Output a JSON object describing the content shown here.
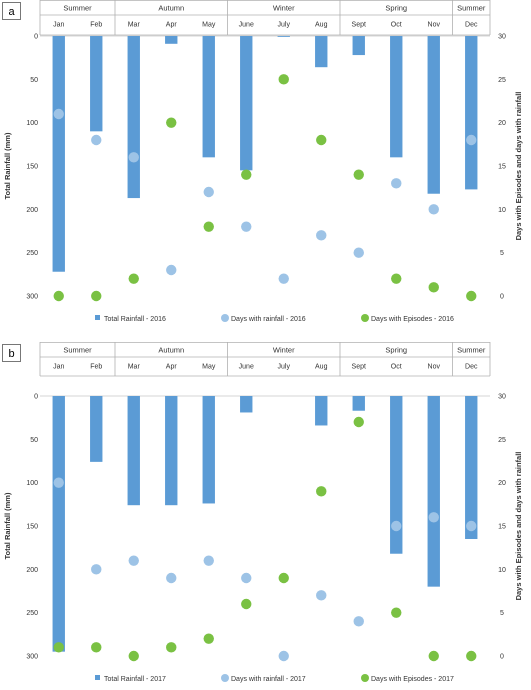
{
  "chart_data": [
    {
      "panel_label": "a",
      "type": "bar+scatter",
      "seasons": [
        {
          "name": "Summer",
          "span": [
            0,
            1
          ]
        },
        {
          "name": "Autumn",
          "span": [
            2,
            4
          ]
        },
        {
          "name": "Winter",
          "span": [
            5,
            7
          ]
        },
        {
          "name": "Spring",
          "span": [
            8,
            10
          ]
        },
        {
          "name": "Summer",
          "span": [
            11,
            11
          ]
        }
      ],
      "categories": [
        "Jan",
        "Feb",
        "Mar",
        "Apr",
        "May",
        "June",
        "July",
        "Aug",
        "Sept",
        "Oct",
        "Nov",
        "Dec"
      ],
      "ylabel_left": "Total Rainfall (mm)",
      "ylabel_right": "Days with Episodes and days with rainfall",
      "ylim_left": [
        0,
        300
      ],
      "ylim_right": [
        0,
        30
      ],
      "left_axis_inverted": true,
      "yticks_left": [
        0,
        50,
        100,
        150,
        200,
        250,
        300
      ],
      "yticks_right": [
        0,
        5,
        10,
        15,
        20,
        25,
        30
      ],
      "legend_position": "bottom",
      "series": [
        {
          "name": "Total Rainfall - 2016",
          "kind": "bar",
          "axis": "left",
          "color": "#5b9bd5",
          "values": [
            272,
            110,
            187,
            9,
            140,
            155,
            1,
            36,
            22,
            140,
            182,
            177
          ]
        },
        {
          "name": "Days with rainfall - 2016",
          "kind": "scatter",
          "axis": "right",
          "color": "#9dc3e6",
          "values": [
            21,
            18,
            16,
            3,
            12,
            8,
            2,
            7,
            5,
            13,
            10,
            18
          ]
        },
        {
          "name": "Days with Episodes - 2016",
          "kind": "scatter",
          "axis": "right",
          "color": "#7ac143",
          "values": [
            0,
            0,
            2,
            20,
            8,
            14,
            25,
            18,
            14,
            2,
            1,
            0
          ]
        }
      ]
    },
    {
      "panel_label": "b",
      "type": "bar+scatter",
      "seasons": [
        {
          "name": "Summer",
          "span": [
            0,
            1
          ]
        },
        {
          "name": "Autumn",
          "span": [
            2,
            4
          ]
        },
        {
          "name": "Winter",
          "span": [
            5,
            7
          ]
        },
        {
          "name": "Spring",
          "span": [
            8,
            10
          ]
        },
        {
          "name": "Summer",
          "span": [
            11,
            11
          ]
        }
      ],
      "categories": [
        "Jan",
        "Feb",
        "Mar",
        "Apr",
        "May",
        "June",
        "July",
        "Aug",
        "Sept",
        "Oct",
        "Nov",
        "Dec"
      ],
      "ylabel_left": "Total Rainfall (mm)",
      "ylabel_right": "Days with Episodes and days with rainfall",
      "ylim_left": [
        0,
        300
      ],
      "ylim_right": [
        0,
        30
      ],
      "left_axis_inverted": true,
      "yticks_left": [
        0,
        50,
        100,
        150,
        200,
        250,
        300
      ],
      "yticks_right": [
        0,
        5,
        10,
        15,
        20,
        25,
        30
      ],
      "legend_position": "bottom",
      "series": [
        {
          "name": "Total Rainfall - 2017",
          "kind": "bar",
          "axis": "left",
          "color": "#5b9bd5",
          "values": [
            295,
            76,
            126,
            126,
            124,
            19,
            0,
            34,
            17,
            182,
            220,
            165
          ]
        },
        {
          "name": "Days with rainfall - 2017",
          "kind": "scatter",
          "axis": "right",
          "color": "#9dc3e6",
          "values": [
            20,
            10,
            11,
            9,
            11,
            9,
            0,
            7,
            4,
            15,
            16,
            15
          ]
        },
        {
          "name": "Days with Episodes - 2017",
          "kind": "scatter",
          "axis": "right",
          "color": "#7ac143",
          "values": [
            1,
            1,
            0,
            1,
            2,
            6,
            9,
            19,
            27,
            5,
            0,
            0
          ]
        }
      ]
    }
  ]
}
